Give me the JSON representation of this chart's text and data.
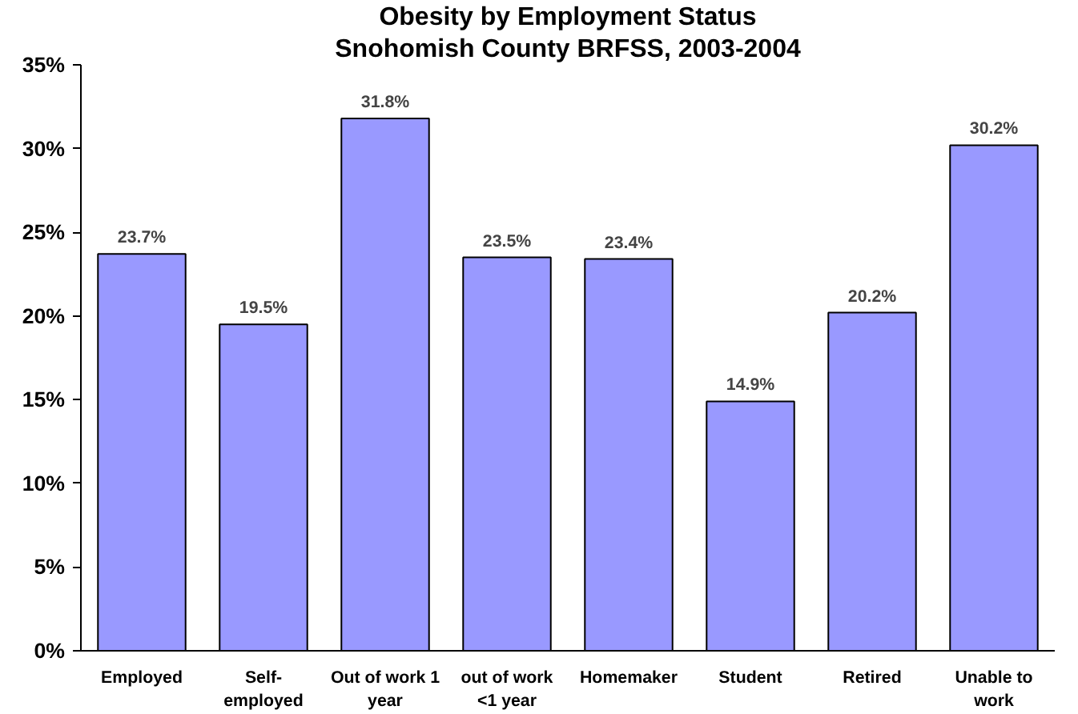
{
  "chart_data": {
    "type": "bar",
    "title": "Obesity by Employment Status",
    "subtitle": "Snohomish County BRFSS, 2003-2004",
    "categories": [
      "Employed",
      "Self-\nemployed",
      "Out of work 1\nyear",
      "out of work\n<1 year",
      "Homemaker",
      "Student",
      "Retired",
      "Unable to\nwork"
    ],
    "values": [
      23.7,
      19.5,
      31.8,
      23.5,
      23.4,
      14.9,
      20.2,
      30.2
    ],
    "value_labels": [
      "23.7%",
      "19.5%",
      "31.8%",
      "23.5%",
      "23.4%",
      "14.9%",
      "20.2%",
      "30.2%"
    ],
    "color": "#9999ff",
    "ylim": [
      0,
      35
    ],
    "yticks": [
      {
        "value": 0,
        "label": "0%"
      },
      {
        "value": 5,
        "label": "5%"
      },
      {
        "value": 10,
        "label": "10%"
      },
      {
        "value": 15,
        "label": "15%"
      },
      {
        "value": 20,
        "label": "20%"
      },
      {
        "value": 25,
        "label": "25%"
      },
      {
        "value": 30,
        "label": "30%"
      },
      {
        "value": 35,
        "label": "35%"
      }
    ],
    "grid": false
  }
}
